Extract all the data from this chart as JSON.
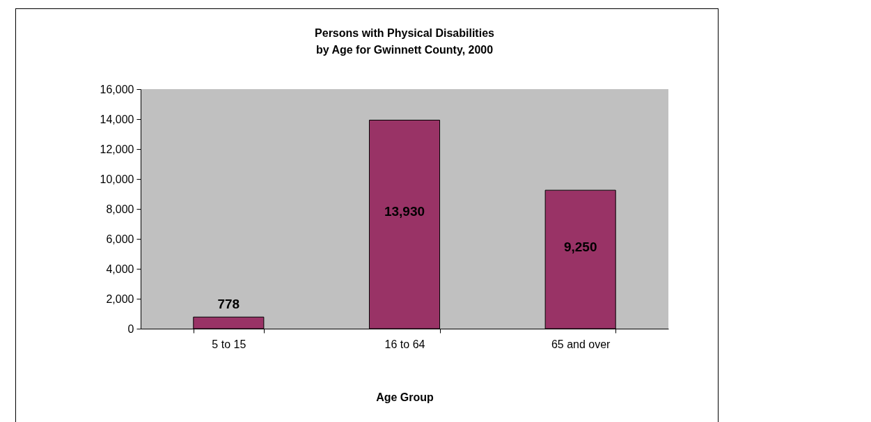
{
  "chart_data": {
    "type": "bar",
    "title": [
      "Persons with Physical Disabilities",
      "by Age for Gwinnett County, 2000"
    ],
    "xlabel": "Age Group",
    "categories": [
      "5 to 15",
      "16 to 64",
      "65 and over"
    ],
    "values": [
      778,
      13930,
      9250
    ],
    "color": "#993366",
    "value_labels": [
      "778",
      "13,930",
      "9,250"
    ],
    "ylim": [
      0,
      16000
    ],
    "yticks": [
      0,
      {
        "value": 2000,
        "label": "2,000"
      },
      {
        "value": 4000,
        "label": "4,000"
      },
      {
        "value": 6000,
        "label": "6,000"
      },
      {
        "value": 8000,
        "label": "8,000"
      },
      {
        "value": 10000,
        "label": "10,000"
      },
      {
        "value": 12000,
        "label": "12,000"
      },
      {
        "value": 14000,
        "label": "14,000"
      },
      {
        "value": 16000,
        "label": "16,000"
      }
    ],
    "grid": false
  }
}
